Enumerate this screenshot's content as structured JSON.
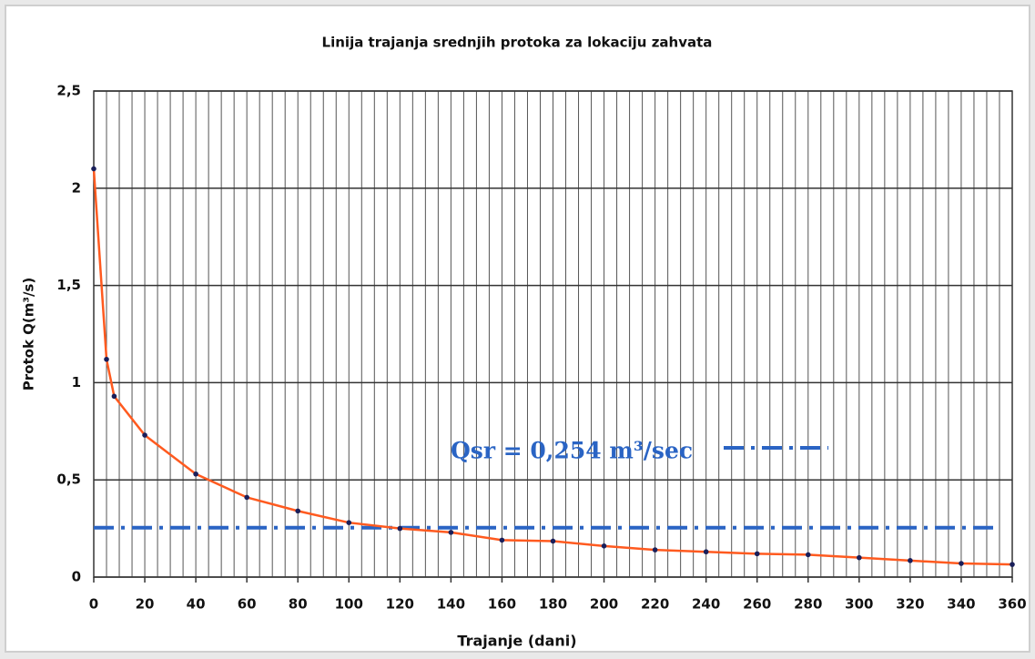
{
  "chart_data": {
    "type": "line",
    "title": "Linija trajanja srednjih protoka za lokaciju zahvata",
    "x_label": "Trajanje (dani)",
    "y_label": "Protok Q(m³/s)",
    "x": [
      0,
      5,
      8,
      20,
      40,
      60,
      80,
      100,
      120,
      140,
      160,
      180,
      200,
      220,
      240,
      260,
      280,
      300,
      320,
      340,
      360
    ],
    "values": [
      2.1,
      1.12,
      0.93,
      0.73,
      0.53,
      0.41,
      0.34,
      0.28,
      0.25,
      0.23,
      0.19,
      0.185,
      0.16,
      0.14,
      0.13,
      0.12,
      0.115,
      0.1,
      0.085,
      0.07,
      0.065
    ],
    "color": "#ff5a1f",
    "marker_color": "#1a1f5a",
    "xlim": [
      0,
      360
    ],
    "xticks": [
      0,
      20,
      40,
      60,
      80,
      100,
      120,
      140,
      160,
      180,
      200,
      220,
      240,
      260,
      280,
      300,
      320,
      340,
      360
    ],
    "x_minor_grid_step": 5,
    "ylim": [
      0,
      2.5
    ],
    "yticks": [
      0,
      {
        "value": 0.5,
        "label": "0,5"
      },
      1,
      {
        "value": 1.5,
        "label": "1,5"
      },
      2,
      {
        "value": 2.5,
        "label": "2,5"
      }
    ],
    "grid": true,
    "reference_line": {
      "value": 0.254,
      "label": "Qsr = 0,254 m³/sec",
      "color": "#2a64c4"
    }
  }
}
